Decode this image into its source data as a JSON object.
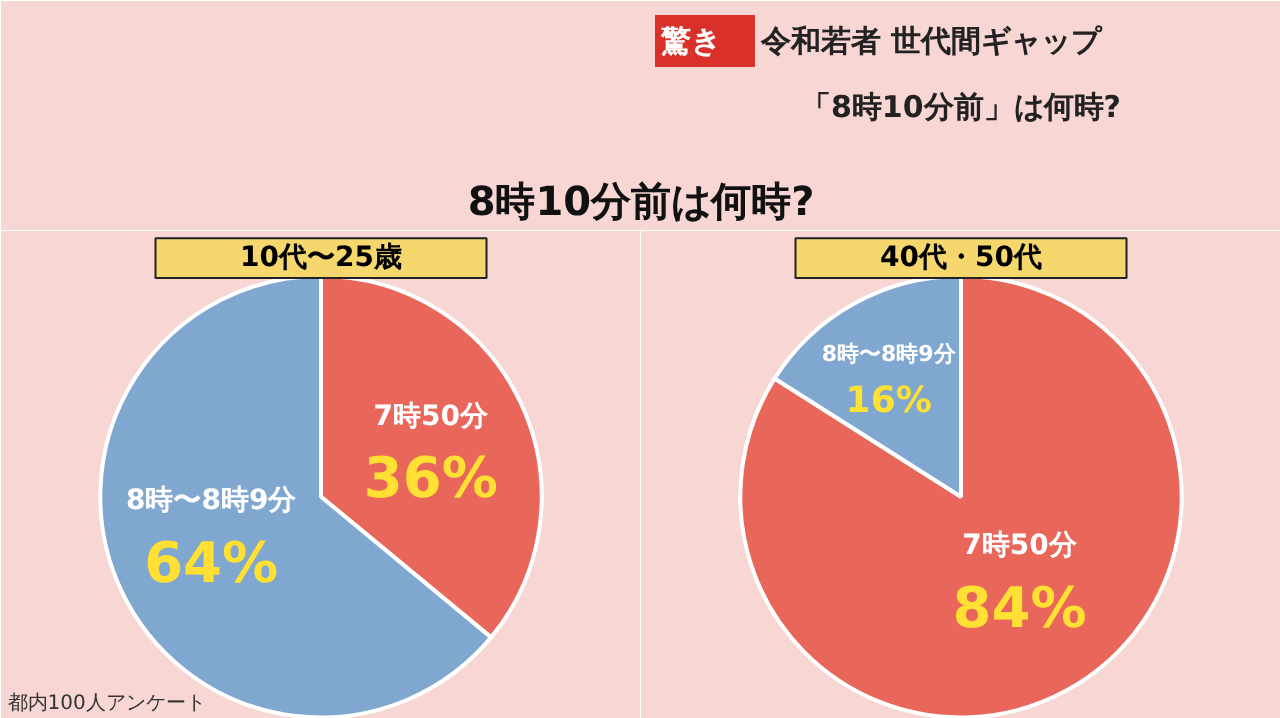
{
  "chart_data": [
    {
      "type": "pie",
      "title": "10代〜25歳",
      "categories": [
        "7時50分",
        "8時〜8時9分"
      ],
      "values": [
        36,
        64
      ],
      "colors": [
        "#e8675a",
        "#7fa7cf"
      ],
      "value_labels": [
        "36%",
        "64%"
      ],
      "annotations": [
        "驚き",
        "令和若者 世代間ギャップ",
        "「8時10分前」は何時?",
        "8時10分前は何時?",
        "都内100人アンケート"
      ]
    },
    {
      "type": "pie",
      "title": "40代・50代",
      "categories": [
        "7時50分",
        "8時〜8時9分"
      ],
      "values": [
        84,
        16
      ],
      "colors": [
        "#e8675a",
        "#7fa7cf"
      ],
      "value_labels": [
        "84%",
        "16%"
      ]
    }
  ]
}
